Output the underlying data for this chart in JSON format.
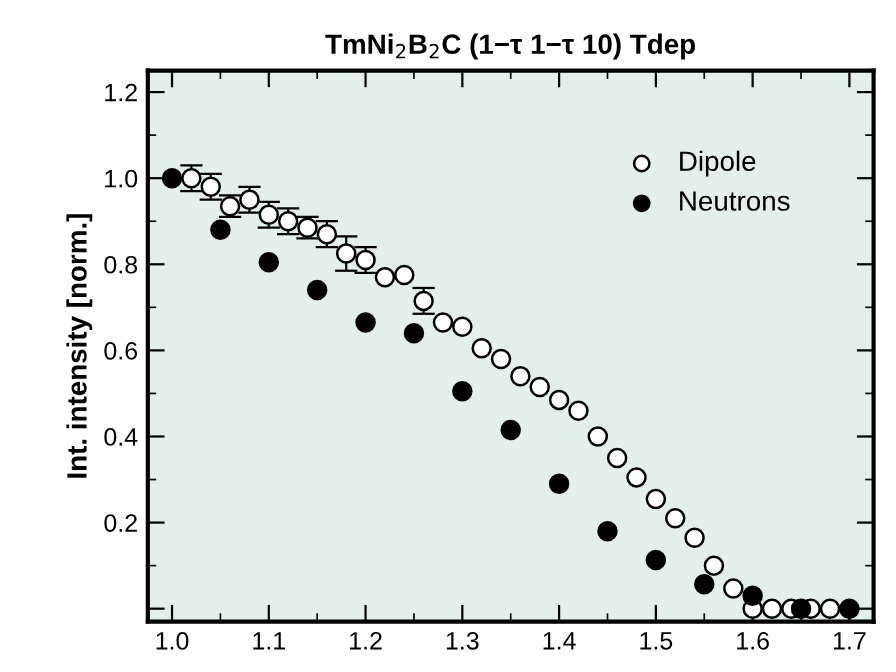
{
  "chart_data": {
    "type": "scatter",
    "title": "TmNi$_{2}$B$_{2}$C (1−τ 1−τ 10) Tdep",
    "ylabel": "Int. intensity [norm.]",
    "xlim": [
      0.975,
      1.725
    ],
    "ylim": [
      -0.03,
      1.25
    ],
    "xticks": [
      {
        "value": 1.0,
        "label": "1.0"
      },
      1.1,
      1.2,
      1.3,
      1.4,
      1.5,
      1.6,
      1.7
    ],
    "yticks": [
      {
        "value": 0,
        "label": null
      },
      0.2,
      0.4,
      0.6,
      0.8,
      {
        "value": 1.0,
        "label": "1.0"
      },
      1.2
    ],
    "grid": false,
    "legend": "top right",
    "marker": "circle",
    "series": [
      {
        "name": "Dipole",
        "color": "#ffffff",
        "x": [
          1.02,
          1.04,
          1.06,
          1.08,
          1.1,
          1.12,
          1.14,
          1.16,
          1.18,
          1.2,
          1.22,
          1.24,
          1.26,
          1.28,
          1.3,
          1.32,
          1.34,
          1.36,
          1.38,
          1.4,
          1.42,
          1.44,
          1.46,
          1.48,
          1.5,
          1.52,
          1.54,
          1.56,
          1.58,
          1.6,
          1.62,
          1.64,
          1.66,
          1.68
        ],
        "values": [
          1.0,
          0.98,
          0.935,
          0.95,
          0.915,
          0.9,
          0.885,
          0.87,
          0.825,
          0.81,
          0.77,
          0.775,
          0.715,
          0.665,
          0.655,
          0.605,
          0.58,
          0.54,
          0.515,
          0.485,
          0.46,
          0.4,
          0.35,
          0.305,
          0.255,
          0.21,
          0.165,
          0.1,
          0.047,
          0.0,
          0.0,
          0.0,
          0.0,
          0.0
        ],
        "errors": [
          0.03,
          0.03,
          0.025,
          0.03,
          0.03,
          0.03,
          0.025,
          0.03,
          0.04,
          0.03,
          null,
          null,
          0.03,
          null,
          null,
          null,
          null,
          null,
          null,
          null,
          null,
          null,
          null,
          null,
          null,
          null,
          null,
          null,
          null,
          null,
          null,
          null,
          null,
          null
        ]
      },
      {
        "name": "Neutrons",
        "color": "#000000",
        "x": [
          1.0,
          1.05,
          1.1,
          1.15,
          1.2,
          1.25,
          1.3,
          1.35,
          1.4,
          1.45,
          1.5,
          1.55,
          1.6,
          1.65,
          1.7
        ],
        "values": [
          1.0,
          0.88,
          0.805,
          0.74,
          0.665,
          0.64,
          0.505,
          0.415,
          0.29,
          0.18,
          0.113,
          0.057,
          0.03,
          0.0,
          0.0
        ]
      }
    ]
  }
}
